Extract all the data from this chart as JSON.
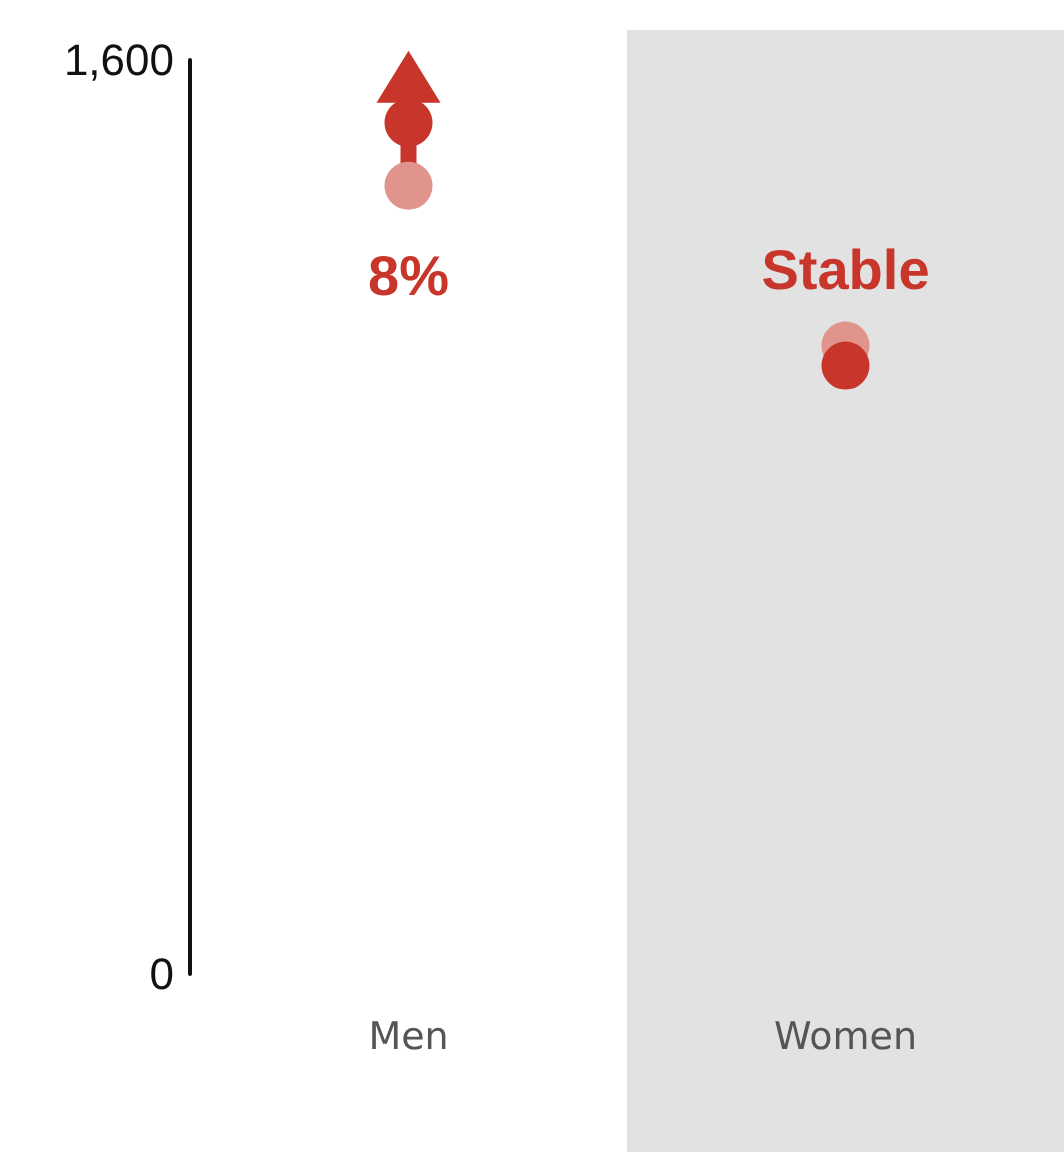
{
  "chart_data": {
    "type": "scatter",
    "categories": [
      "Men",
      "Women"
    ],
    "series": [
      {
        "color": "#e0948c",
        "values": [
          1380,
          1100
        ]
      },
      {
        "color": "#c8352a",
        "values": [
          1490,
          1065
        ]
      }
    ],
    "ylim": [
      0,
      1600
    ],
    "yticks": [
      0,
      {
        "value": 1600,
        "label": "1,600"
      }
    ],
    "grid": false,
    "marker": "circle",
    "bands": [
      {
        "axis": "x",
        "from": "Women",
        "to": "Women",
        "color": "#e2e2e2"
      }
    ],
    "annotations": [
      "8%",
      "Stable"
    ]
  }
}
